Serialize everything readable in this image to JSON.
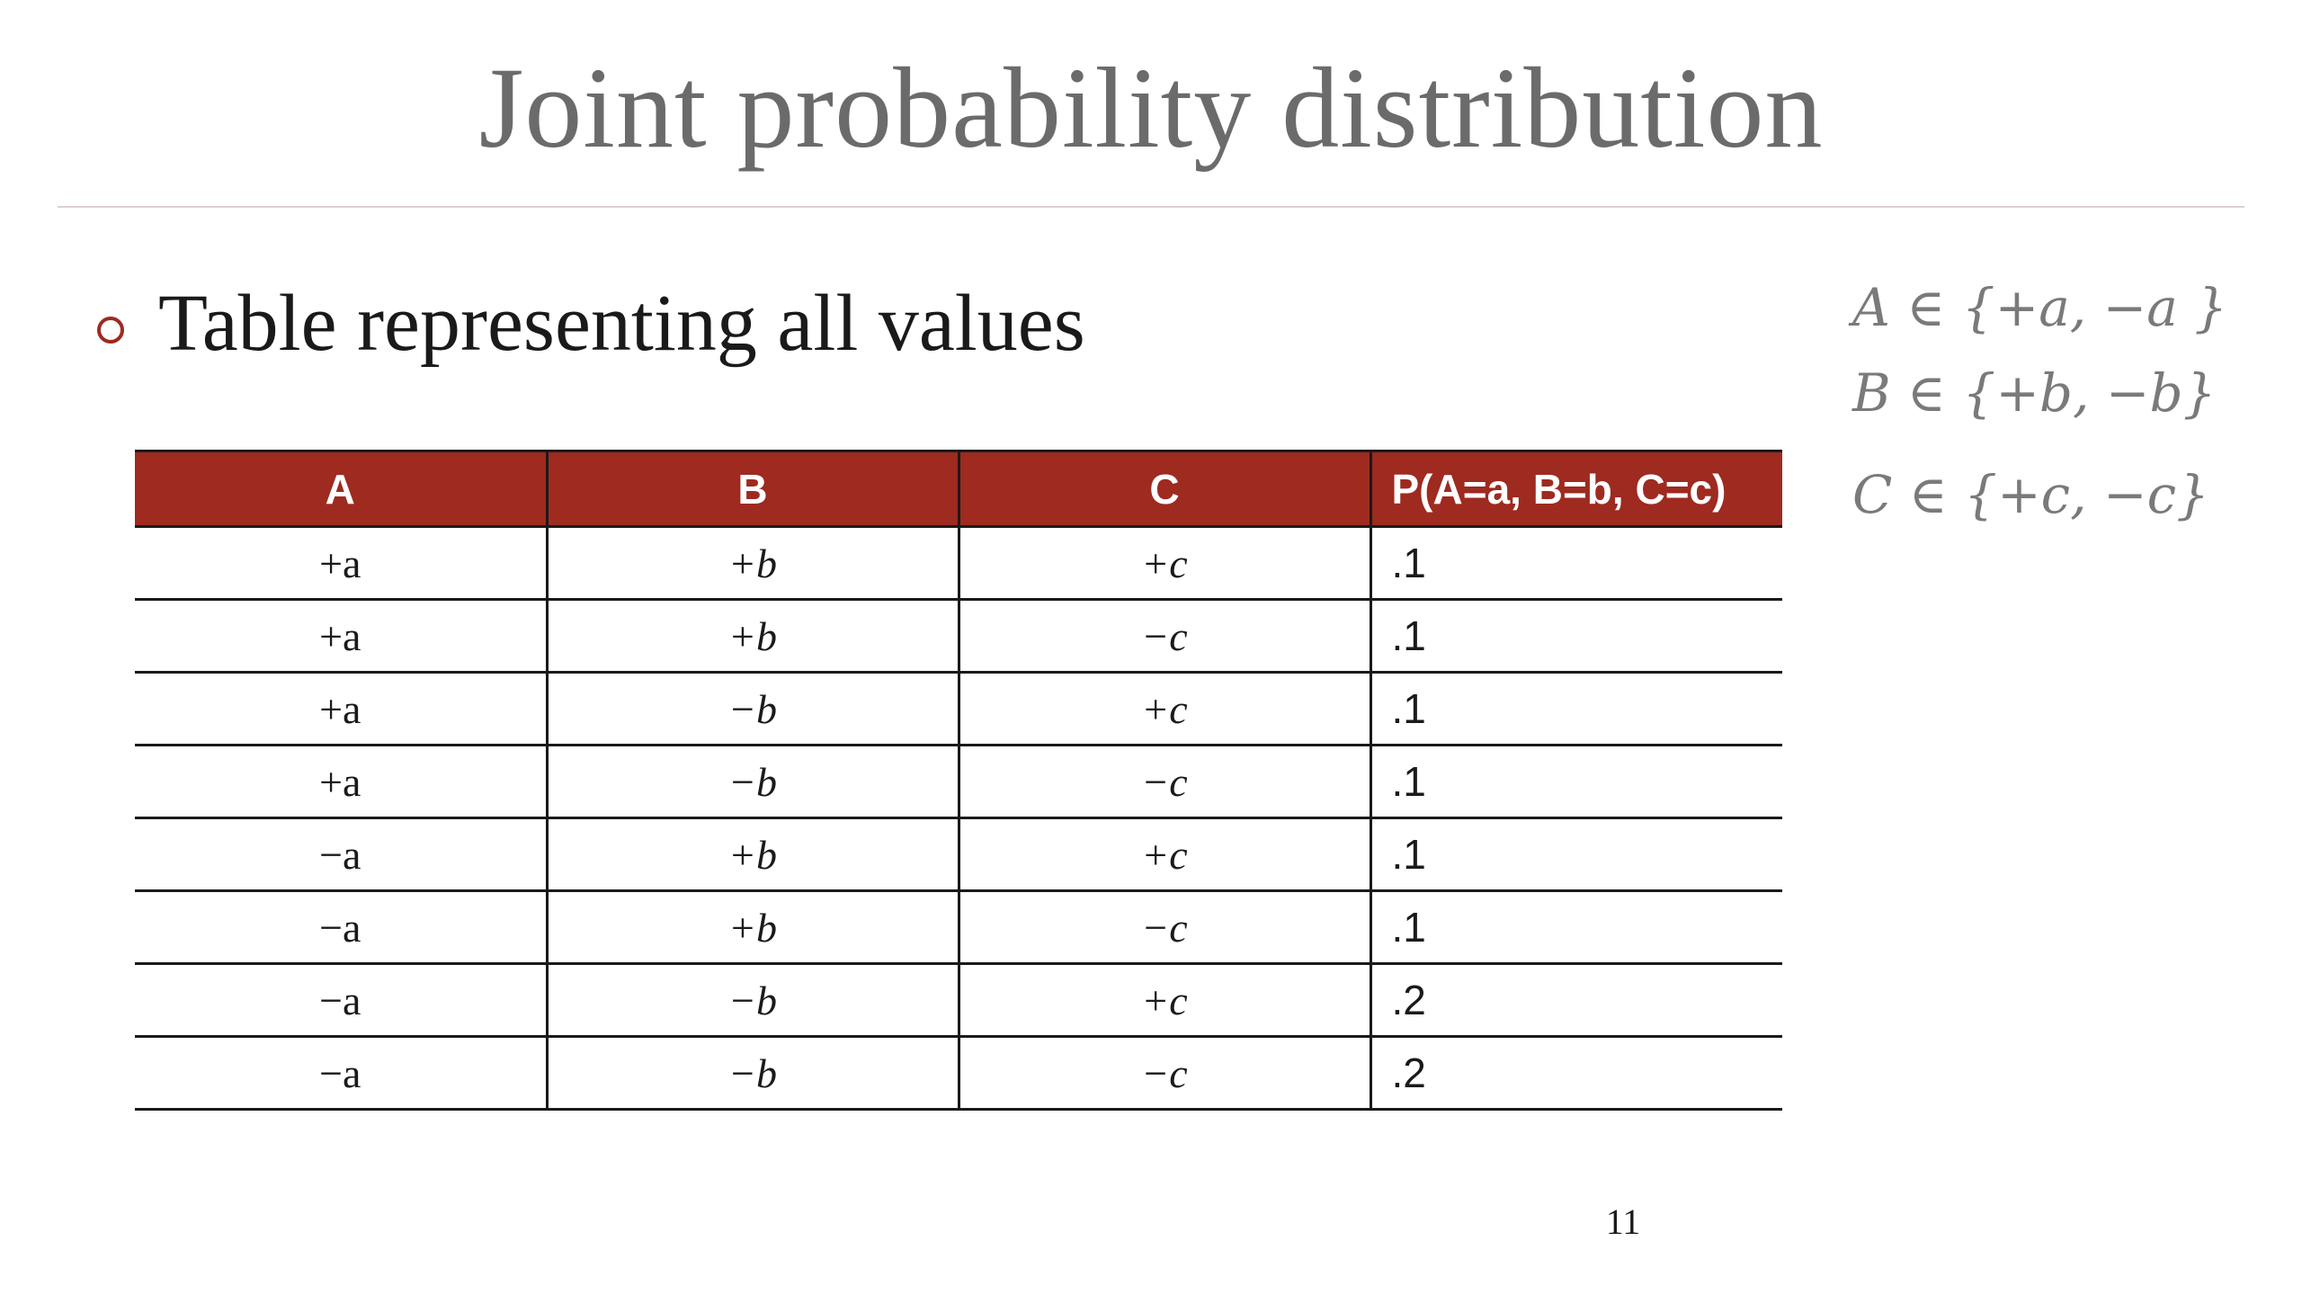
{
  "slide": {
    "title": "Joint probability distribution",
    "bullet": "Table representing all values",
    "definitions": {
      "a": "A ∈ {+a, −a }",
      "b": "B ∈ {+b, −b}",
      "c": "C ∈ {+c, −c}"
    },
    "page_number": "11"
  },
  "table": {
    "headers": [
      "A",
      "B",
      "C",
      "P(A=a, B=b, C=c)"
    ],
    "rows": [
      [
        "+a",
        "+b",
        "+c",
        ".1"
      ],
      [
        "+a",
        "+b",
        "−c",
        ".1"
      ],
      [
        "+a",
        "−b",
        "+c",
        ".1"
      ],
      [
        "+a",
        "−b",
        "−c",
        ".1"
      ],
      [
        "−a",
        "+b",
        "+c",
        ".1"
      ],
      [
        "−a",
        "+b",
        "−c",
        ".1"
      ],
      [
        "−a",
        "−b",
        "+c",
        ".2"
      ],
      [
        "−a",
        "−b",
        "−c",
        ".2"
      ]
    ]
  },
  "colors": {
    "header_bg": "#9e2a20",
    "title": "#6b6b6b",
    "bullet": "#9e2a20"
  }
}
